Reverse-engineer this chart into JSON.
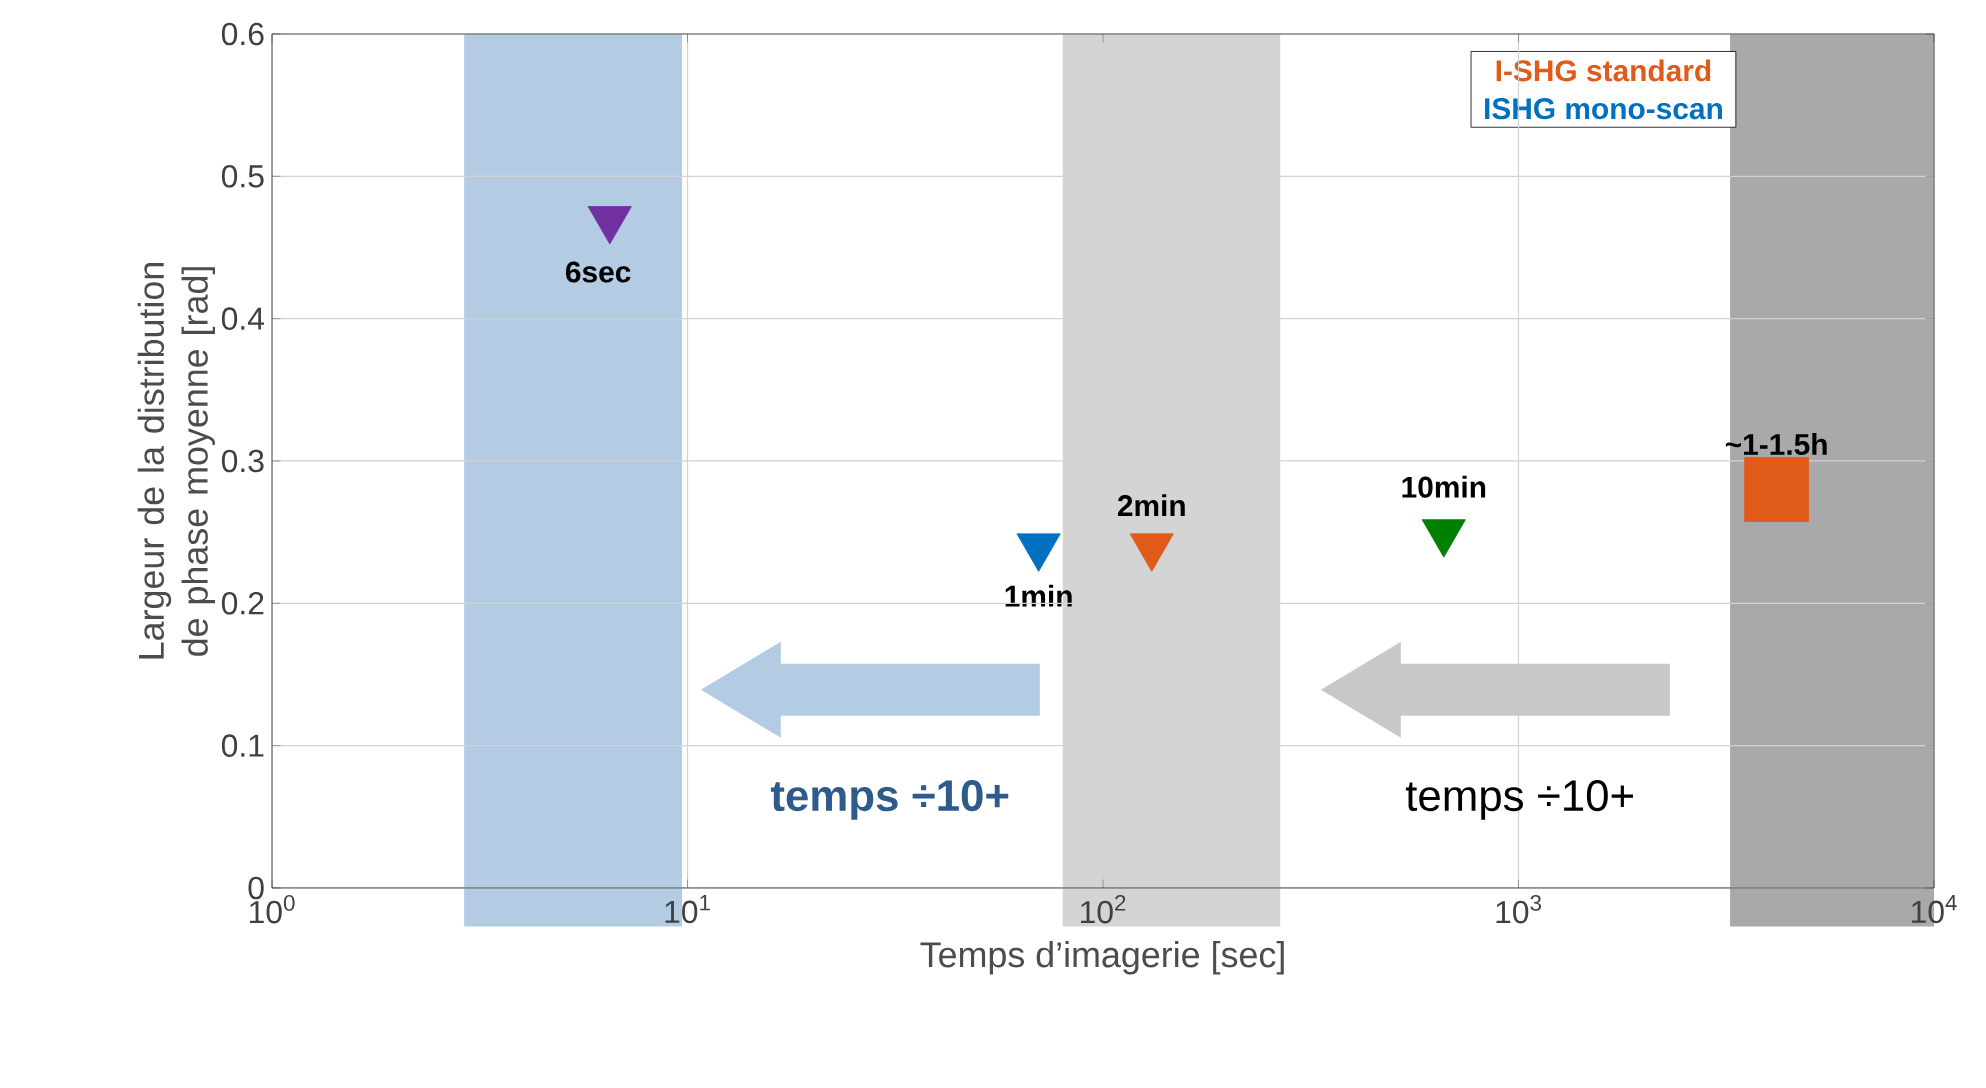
{
  "chart_data": {
    "type": "scatter",
    "xlabel": "Temps d’imagerie [sec]",
    "ylabel": "Largeur de la distribution de phase moyenne [rad]",
    "log": "x",
    "xlim": [
      1,
      10000
    ],
    "xticks": [
      {
        "value": 1,
        "label": "10$^{0}$"
      },
      {
        "value": 10,
        "label": "10$^{1}$"
      },
      {
        "value": 100,
        "label": "10$^{2}$"
      },
      {
        "value": 1000,
        "label": "10$^{3}$"
      },
      {
        "value": 10000,
        "label": "10$^{4}$"
      }
    ],
    "ylim": [
      0,
      0.6
    ],
    "yticks": [
      0,
      0.1,
      0.2,
      0.3,
      0.4,
      0.5,
      0.6
    ],
    "grid": true,
    "legend": "top right",
    "series": [
      {
        "name": "ISHG mono-scan",
        "marker": "triangle",
        "colors": [
          "#7030a0",
          "#0070c0",
          "#008000"
        ],
        "x": [
          6.5,
          70,
          661
        ],
        "values": [
          0.47,
          0.24,
          0.25
        ]
      },
      {
        "name": "I-SHG standard",
        "marker": "triangle",
        "color": "#e05a1a",
        "x": [
          131
        ],
        "values": [
          0.24
        ]
      },
      {
        "marker": "square",
        "color": "#e05a1a",
        "x": [
          4180
        ],
        "values": [
          0.28
        ]
      }
    ],
    "bands": [
      {
        "axis": "x",
        "from": 2.9,
        "to": 9.7,
        "color": "#b4cbe4"
      },
      {
        "axis": "x",
        "from": 80,
        "to": 267,
        "color": "#d4d4d4"
      },
      {
        "axis": "x",
        "from": 3230,
        "to": 10000,
        "color": "#a9a9a9"
      }
    ],
    "annotations": [
      {
        "text": "6sec",
        "x": 6.5,
        "y": 0.47
      },
      {
        "text": "1min",
        "x": 70,
        "y": 0.24
      },
      {
        "text": "2min",
        "x": 131,
        "y": 0.24
      },
      {
        "text": "10min",
        "x": 661,
        "y": 0.25
      },
      {
        "text": "~1-1.5h",
        "x": 4180,
        "y": 0.28
      },
      "temps ÷10+",
      "temps ÷10+"
    ]
  }
}
